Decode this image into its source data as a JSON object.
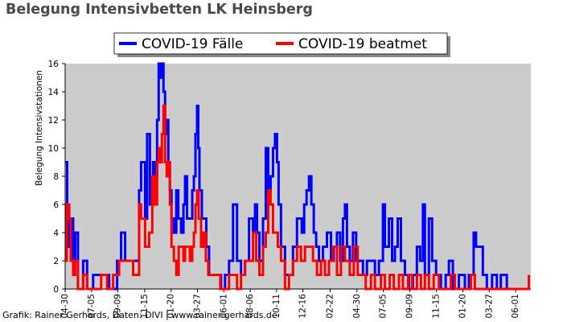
{
  "page": {
    "title": "Belegung Intensivbetten LK Heinsberg",
    "credit": "Grafik: Rainer Gerhards, Daten: DIVI | www.rainer-gerhards.de"
  },
  "chart_data": {
    "type": "line",
    "title": "Belegung Intensivbetten LK Heinsberg",
    "ylabel": "Belegung Intensivstationen",
    "xlabel": "",
    "ylim": [
      0,
      16
    ],
    "yticks": [
      0,
      2,
      4,
      6,
      8,
      10,
      12,
      14,
      16
    ],
    "x_tick_labels": [
      "04-30",
      "07-05",
      "09-09",
      "11-15",
      "01-20",
      "03-27",
      "06-01",
      "08-06",
      "10-11",
      "12-16",
      "02-22",
      "04-30",
      "07-05",
      "09-09",
      "11-15",
      "01-20",
      "03-27",
      "06-01"
    ],
    "x_tick_days": [
      0,
      66,
      132,
      199,
      265,
      331,
      397,
      463,
      529,
      595,
      663,
      730,
      796,
      862,
      929,
      995,
      1061,
      1127
    ],
    "x_range_days": [
      0,
      1165
    ],
    "grid": false,
    "legend": "top-center",
    "series": [
      {
        "name": "COVID-19 Fälle",
        "color": "#0000ff",
        "points": [
          [
            0,
            9
          ],
          [
            5,
            6
          ],
          [
            10,
            3
          ],
          [
            14,
            5
          ],
          [
            20,
            2
          ],
          [
            25,
            4
          ],
          [
            32,
            0
          ],
          [
            45,
            2
          ],
          [
            55,
            0
          ],
          [
            70,
            1
          ],
          [
            90,
            1
          ],
          [
            110,
            0
          ],
          [
            130,
            2
          ],
          [
            140,
            4
          ],
          [
            150,
            2
          ],
          [
            170,
            2
          ],
          [
            185,
            7
          ],
          [
            190,
            9
          ],
          [
            200,
            5
          ],
          [
            205,
            11
          ],
          [
            212,
            6
          ],
          [
            220,
            9
          ],
          [
            225,
            8
          ],
          [
            230,
            12
          ],
          [
            234,
            16
          ],
          [
            238,
            15
          ],
          [
            242,
            16
          ],
          [
            246,
            14
          ],
          [
            250,
            11
          ],
          [
            254,
            12
          ],
          [
            258,
            9
          ],
          [
            262,
            7
          ],
          [
            266,
            5
          ],
          [
            272,
            4
          ],
          [
            278,
            7
          ],
          [
            283,
            5
          ],
          [
            290,
            4
          ],
          [
            296,
            6
          ],
          [
            300,
            8
          ],
          [
            305,
            5
          ],
          [
            312,
            5
          ],
          [
            318,
            7
          ],
          [
            322,
            8
          ],
          [
            326,
            11
          ],
          [
            330,
            13
          ],
          [
            333,
            10
          ],
          [
            336,
            7
          ],
          [
            342,
            5
          ],
          [
            348,
            5
          ],
          [
            353,
            3
          ],
          [
            360,
            1
          ],
          [
            375,
            1
          ],
          [
            390,
            0
          ],
          [
            400,
            1
          ],
          [
            410,
            2
          ],
          [
            420,
            6
          ],
          [
            430,
            2
          ],
          [
            440,
            1
          ],
          [
            450,
            2
          ],
          [
            460,
            5
          ],
          [
            470,
            4
          ],
          [
            475,
            6
          ],
          [
            480,
            4
          ],
          [
            486,
            2
          ],
          [
            495,
            5
          ],
          [
            502,
            10
          ],
          [
            508,
            7
          ],
          [
            514,
            8
          ],
          [
            520,
            10
          ],
          [
            525,
            11
          ],
          [
            530,
            9
          ],
          [
            534,
            6
          ],
          [
            540,
            3
          ],
          [
            550,
            1
          ],
          [
            560,
            1
          ],
          [
            570,
            3
          ],
          [
            580,
            5
          ],
          [
            586,
            5
          ],
          [
            592,
            4
          ],
          [
            598,
            6
          ],
          [
            604,
            7
          ],
          [
            610,
            8
          ],
          [
            616,
            6
          ],
          [
            622,
            4
          ],
          [
            628,
            3
          ],
          [
            635,
            2
          ],
          [
            645,
            3
          ],
          [
            655,
            4
          ],
          [
            665,
            2
          ],
          [
            672,
            3
          ],
          [
            680,
            4
          ],
          [
            688,
            2
          ],
          [
            695,
            5
          ],
          [
            700,
            6
          ],
          [
            705,
            3
          ],
          [
            712,
            2
          ],
          [
            720,
            4
          ],
          [
            728,
            2
          ],
          [
            735,
            2
          ],
          [
            745,
            1
          ],
          [
            755,
            2
          ],
          [
            765,
            2
          ],
          [
            775,
            1
          ],
          [
            785,
            2
          ],
          [
            795,
            6
          ],
          [
            800,
            3
          ],
          [
            810,
            5
          ],
          [
            818,
            2
          ],
          [
            825,
            3
          ],
          [
            832,
            5
          ],
          [
            840,
            2
          ],
          [
            850,
            1
          ],
          [
            860,
            0
          ],
          [
            870,
            1
          ],
          [
            880,
            3
          ],
          [
            888,
            2
          ],
          [
            895,
            6
          ],
          [
            900,
            1
          ],
          [
            910,
            5
          ],
          [
            918,
            2
          ],
          [
            928,
            1
          ],
          [
            940,
            0
          ],
          [
            952,
            1
          ],
          [
            960,
            2
          ],
          [
            970,
            0
          ],
          [
            985,
            1
          ],
          [
            1000,
            0
          ],
          [
            1010,
            1
          ],
          [
            1022,
            4
          ],
          [
            1028,
            3
          ],
          [
            1036,
            3
          ],
          [
            1045,
            1
          ],
          [
            1055,
            0
          ],
          [
            1068,
            1
          ],
          [
            1080,
            0
          ],
          [
            1090,
            1
          ],
          [
            1105,
            0
          ],
          [
            1120,
            0
          ],
          [
            1150,
            0
          ],
          [
            1160,
            0
          ]
        ]
      },
      {
        "name": "COVID-19 beatmet",
        "color": "#ff0000",
        "points": [
          [
            0,
            2
          ],
          [
            4,
            6
          ],
          [
            9,
            5
          ],
          [
            14,
            2
          ],
          [
            20,
            1
          ],
          [
            25,
            2
          ],
          [
            32,
            0
          ],
          [
            45,
            1
          ],
          [
            55,
            0
          ],
          [
            70,
            0
          ],
          [
            90,
            1
          ],
          [
            105,
            0
          ],
          [
            120,
            1
          ],
          [
            135,
            2
          ],
          [
            150,
            2
          ],
          [
            170,
            1
          ],
          [
            185,
            6
          ],
          [
            190,
            5
          ],
          [
            200,
            3
          ],
          [
            210,
            4
          ],
          [
            218,
            8
          ],
          [
            224,
            6
          ],
          [
            230,
            9
          ],
          [
            234,
            10
          ],
          [
            238,
            9
          ],
          [
            242,
            11
          ],
          [
            246,
            13
          ],
          [
            250,
            9
          ],
          [
            254,
            8
          ],
          [
            258,
            9
          ],
          [
            262,
            6
          ],
          [
            266,
            3
          ],
          [
            272,
            2
          ],
          [
            278,
            1
          ],
          [
            284,
            3
          ],
          [
            290,
            3
          ],
          [
            296,
            2
          ],
          [
            300,
            3
          ],
          [
            306,
            3
          ],
          [
            312,
            2
          ],
          [
            318,
            3
          ],
          [
            322,
            4
          ],
          [
            326,
            6
          ],
          [
            330,
            7
          ],
          [
            334,
            5
          ],
          [
            340,
            3
          ],
          [
            346,
            4
          ],
          [
            352,
            2
          ],
          [
            358,
            1
          ],
          [
            372,
            1
          ],
          [
            388,
            0
          ],
          [
            400,
            0
          ],
          [
            410,
            1
          ],
          [
            420,
            1
          ],
          [
            430,
            0
          ],
          [
            440,
            1
          ],
          [
            450,
            2
          ],
          [
            460,
            2
          ],
          [
            470,
            4
          ],
          [
            478,
            2
          ],
          [
            486,
            1
          ],
          [
            495,
            3
          ],
          [
            502,
            4
          ],
          [
            508,
            7
          ],
          [
            514,
            6
          ],
          [
            520,
            4
          ],
          [
            526,
            4
          ],
          [
            532,
            3
          ],
          [
            540,
            2
          ],
          [
            550,
            0
          ],
          [
            560,
            1
          ],
          [
            570,
            2
          ],
          [
            580,
            3
          ],
          [
            590,
            2
          ],
          [
            600,
            3
          ],
          [
            610,
            3
          ],
          [
            620,
            2
          ],
          [
            630,
            1
          ],
          [
            640,
            2
          ],
          [
            650,
            1
          ],
          [
            660,
            2
          ],
          [
            670,
            3
          ],
          [
            680,
            1
          ],
          [
            690,
            3
          ],
          [
            700,
            2
          ],
          [
            712,
            1
          ],
          [
            722,
            3
          ],
          [
            732,
            1
          ],
          [
            742,
            1
          ],
          [
            752,
            0
          ],
          [
            765,
            1
          ],
          [
            775,
            0
          ],
          [
            790,
            1
          ],
          [
            800,
            0
          ],
          [
            812,
            1
          ],
          [
            822,
            0
          ],
          [
            835,
            1
          ],
          [
            845,
            0
          ],
          [
            858,
            1
          ],
          [
            868,
            0
          ],
          [
            880,
            1
          ],
          [
            890,
            0
          ],
          [
            900,
            1
          ],
          [
            910,
            0
          ],
          [
            922,
            1
          ],
          [
            935,
            0
          ],
          [
            950,
            0
          ],
          [
            965,
            1
          ],
          [
            975,
            0
          ],
          [
            990,
            0
          ],
          [
            1000,
            0
          ],
          [
            1015,
            1
          ],
          [
            1025,
            0
          ],
          [
            1040,
            0
          ],
          [
            1050,
            0
          ],
          [
            1070,
            0
          ],
          [
            1100,
            0
          ],
          [
            1130,
            0
          ],
          [
            1160,
            1
          ]
        ]
      }
    ]
  }
}
